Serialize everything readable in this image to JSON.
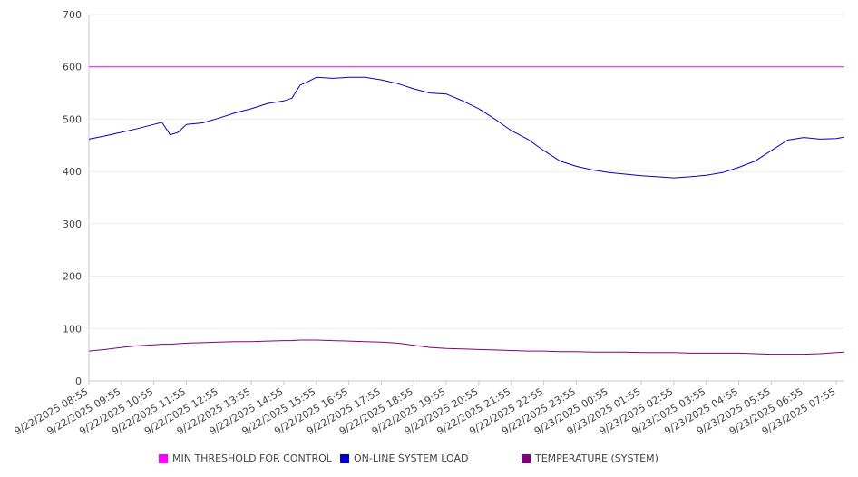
{
  "chart_data": {
    "type": "line",
    "title": "",
    "xlabel": "",
    "ylabel": "",
    "ylim": [
      0,
      700
    ],
    "yticks": [
      0,
      100,
      200,
      300,
      400,
      500,
      600,
      700
    ],
    "grid": true,
    "legend_position": "bottom",
    "x_tick_labels": [
      "9/22/2025 08:55",
      "9/22/2025 09:55",
      "9/22/2025 10:55",
      "9/22/2025 11:55",
      "9/22/2025 12:55",
      "9/22/2025 13:55",
      "9/22/2025 14:55",
      "9/22/2025 15:55",
      "9/22/2025 16:55",
      "9/22/2025 17:55",
      "9/22/2025 18:55",
      "9/22/2025 19:55",
      "9/22/2025 20:55",
      "9/22/2025 21:55",
      "9/22/2025 22:55",
      "9/22/2025 23:55",
      "9/23/2025 00:55",
      "9/23/2025 01:55",
      "9/23/2025 02:55",
      "9/23/2025 03:55",
      "9/23/2025 04:55",
      "9/23/2025 05:55",
      "9/23/2025 06:55",
      "9/23/2025 07:55"
    ],
    "x": [
      "9/22/2025 08:55",
      "9/22/2025 09:25",
      "9/22/2025 09:55",
      "9/22/2025 10:25",
      "9/22/2025 10:55",
      "9/22/2025 11:10",
      "9/22/2025 11:25",
      "9/22/2025 11:40",
      "9/22/2025 11:55",
      "9/22/2025 12:25",
      "9/22/2025 12:55",
      "9/22/2025 13:25",
      "9/22/2025 13:55",
      "9/22/2025 14:25",
      "9/22/2025 14:55",
      "9/22/2025 15:10",
      "9/22/2025 15:25",
      "9/22/2025 15:40",
      "9/22/2025 15:55",
      "9/22/2025 16:25",
      "9/22/2025 16:55",
      "9/22/2025 17:25",
      "9/22/2025 17:55",
      "9/22/2025 18:25",
      "9/22/2025 18:55",
      "9/22/2025 19:25",
      "9/22/2025 19:55",
      "9/22/2025 20:25",
      "9/22/2025 20:55",
      "9/22/2025 21:25",
      "9/22/2025 21:55",
      "9/22/2025 22:25",
      "9/22/2025 22:55",
      "9/22/2025 23:25",
      "9/22/2025 23:55",
      "9/23/2025 00:25",
      "9/23/2025 00:55",
      "9/23/2025 01:25",
      "9/23/2025 01:55",
      "9/23/2025 02:25",
      "9/23/2025 02:55",
      "9/23/2025 03:25",
      "9/23/2025 03:55",
      "9/23/2025 04:25",
      "9/23/2025 04:55",
      "9/23/2025 05:25",
      "9/23/2025 05:55",
      "9/23/2025 06:25",
      "9/23/2025 06:55",
      "9/23/2025 07:25",
      "9/23/2025 07:55",
      "9/23/2025 08:10"
    ],
    "series": [
      {
        "name": "MIN THRESHOLD FOR CONTROL",
        "color": "#ff00ff",
        "values": [
          600,
          600,
          600,
          600,
          600,
          600,
          600,
          600,
          600,
          600,
          600,
          600,
          600,
          600,
          600,
          600,
          600,
          600,
          600,
          600,
          600,
          600,
          600,
          600,
          600,
          600,
          600,
          600,
          600,
          600,
          600,
          600,
          600,
          600,
          600,
          600,
          600,
          600,
          600,
          600,
          600,
          600,
          600,
          600,
          600,
          600,
          600,
          600,
          600,
          600,
          600,
          600
        ]
      },
      {
        "name": "ON-LINE SYSTEM LOAD",
        "color": "#0000cc",
        "values": [
          462,
          468,
          475,
          482,
          490,
          494,
          470,
          475,
          490,
          493,
          502,
          512,
          520,
          530,
          535,
          540,
          565,
          572,
          580,
          578,
          580,
          580,
          575,
          568,
          558,
          550,
          548,
          535,
          520,
          500,
          478,
          462,
          440,
          420,
          410,
          403,
          398,
          395,
          392,
          390,
          388,
          390,
          393,
          398,
          408,
          420,
          440,
          460,
          465,
          462,
          463,
          466
        ]
      },
      {
        "name": "TEMPERATURE (SYSTEM)",
        "color": "#800080",
        "values": [
          57,
          60,
          64,
          67,
          69,
          70,
          70,
          71,
          72,
          73,
          74,
          75,
          75,
          76,
          77,
          77,
          78,
          78,
          78,
          77,
          76,
          75,
          74,
          72,
          68,
          64,
          62,
          61,
          60,
          59,
          58,
          57,
          57,
          56,
          56,
          55,
          55,
          55,
          54,
          54,
          54,
          53,
          53,
          53,
          53,
          52,
          51,
          51,
          51,
          52,
          54,
          55
        ]
      }
    ]
  }
}
